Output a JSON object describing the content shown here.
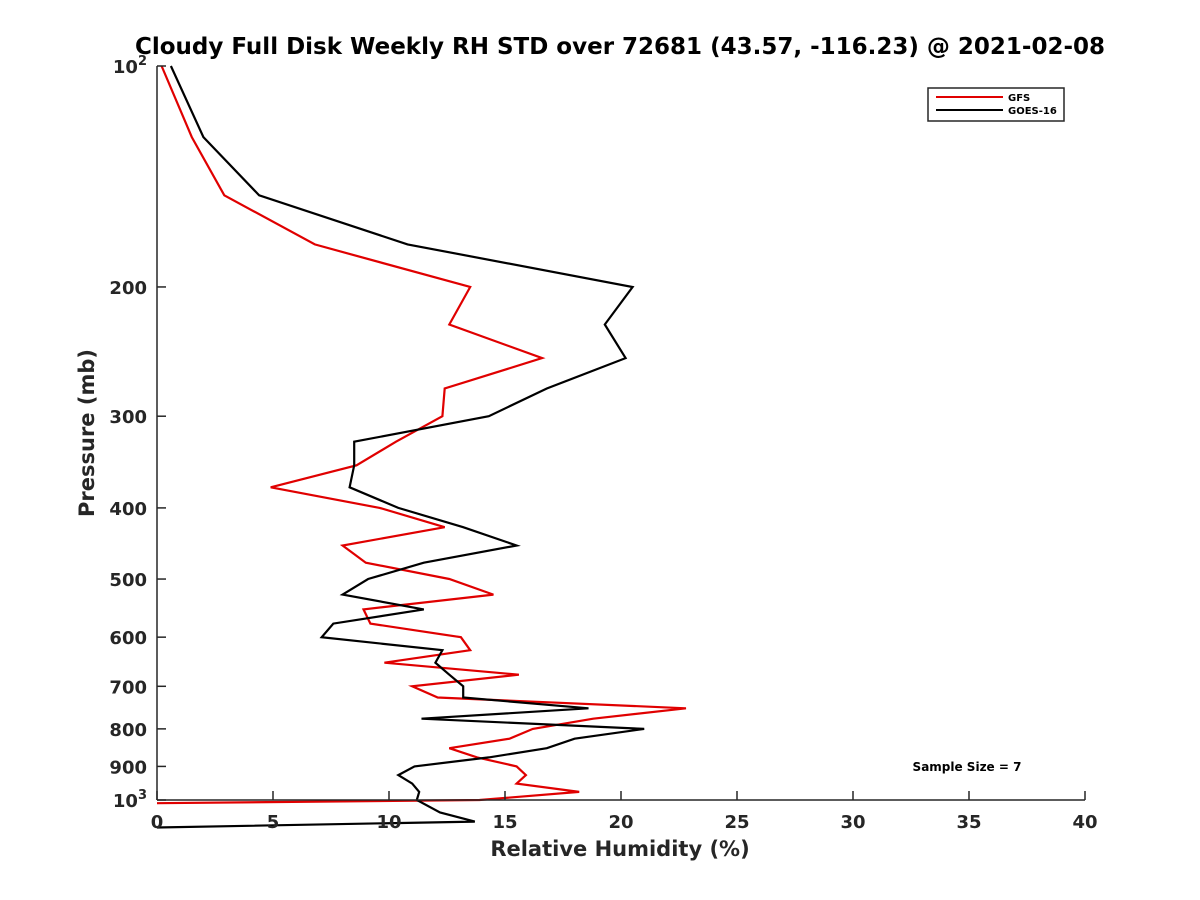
{
  "chart_data": {
    "type": "line",
    "title": "Cloudy Full Disk Weekly RH STD over 72681 (43.57, -116.23) @ 2021-02-08",
    "xlabel": "Relative Humidity (%)",
    "ylabel": "Pressure (mb)",
    "xlim": [
      0,
      40
    ],
    "ylim": [
      100,
      1000
    ],
    "y_scale": "log",
    "y_reversed": true,
    "grid": false,
    "legend_position": "top-right",
    "note": "Sample Size = 7",
    "x_ticks": [
      "0",
      "5",
      "10",
      "15",
      "20",
      "25",
      "30",
      "35",
      "40"
    ],
    "x_tick_values": [
      0,
      5,
      10,
      15,
      20,
      25,
      30,
      35,
      40
    ],
    "y_ticks": [
      {
        "value": 100,
        "base": "10",
        "exp": "2"
      },
      {
        "value": 200,
        "label": "200"
      },
      {
        "value": 300,
        "label": "300"
      },
      {
        "value": 400,
        "label": "400"
      },
      {
        "value": 500,
        "label": "500"
      },
      {
        "value": 600,
        "label": "600"
      },
      {
        "value": 700,
        "label": "700"
      },
      {
        "value": 800,
        "label": "800"
      },
      {
        "value": 900,
        "label": "900"
      },
      {
        "value": 1000,
        "base": "10",
        "exp": "3"
      }
    ],
    "series": [
      {
        "name": "GFS",
        "color": "#e00000",
        "points": [
          [
            0.2,
            100
          ],
          [
            1.5,
            125
          ],
          [
            2.9,
            150
          ],
          [
            6.8,
            175
          ],
          [
            13.5,
            200
          ],
          [
            12.6,
            225
          ],
          [
            16.6,
            250
          ],
          [
            12.4,
            275
          ],
          [
            12.3,
            300
          ],
          [
            10.3,
            325
          ],
          [
            8.6,
            350
          ],
          [
            4.9,
            375
          ],
          [
            9.6,
            400
          ],
          [
            12.4,
            425
          ],
          [
            8.0,
            450
          ],
          [
            9.0,
            475
          ],
          [
            12.6,
            500
          ],
          [
            14.5,
            525
          ],
          [
            8.9,
            550
          ],
          [
            9.2,
            575
          ],
          [
            13.1,
            600
          ],
          [
            13.5,
            625
          ],
          [
            9.8,
            650
          ],
          [
            15.6,
            675
          ],
          [
            11.0,
            700
          ],
          [
            12.1,
            725
          ],
          [
            22.8,
            750
          ],
          [
            18.8,
            775
          ],
          [
            16.2,
            800
          ],
          [
            15.2,
            825
          ],
          [
            12.6,
            850
          ],
          [
            13.8,
            875
          ],
          [
            15.5,
            900
          ],
          [
            15.9,
            925
          ],
          [
            15.5,
            950
          ],
          [
            18.2,
            975
          ],
          [
            13.9,
            1000
          ],
          [
            0.0,
            1010
          ]
        ]
      },
      {
        "name": "GOES-16",
        "color": "#000000",
        "points": [
          [
            0.6,
            100
          ],
          [
            2.0,
            125
          ],
          [
            4.4,
            150
          ],
          [
            10.8,
            175
          ],
          [
            20.5,
            200
          ],
          [
            19.3,
            225
          ],
          [
            20.2,
            250
          ],
          [
            16.8,
            275
          ],
          [
            14.3,
            300
          ],
          [
            8.5,
            325
          ],
          [
            8.5,
            350
          ],
          [
            8.3,
            375
          ],
          [
            10.4,
            400
          ],
          [
            13.2,
            425
          ],
          [
            15.5,
            450
          ],
          [
            11.5,
            475
          ],
          [
            9.1,
            500
          ],
          [
            8.0,
            525
          ],
          [
            11.5,
            550
          ],
          [
            7.6,
            575
          ],
          [
            7.1,
            600
          ],
          [
            12.3,
            625
          ],
          [
            12.0,
            650
          ],
          [
            12.6,
            675
          ],
          [
            13.2,
            700
          ],
          [
            13.2,
            725
          ],
          [
            18.6,
            750
          ],
          [
            11.4,
            775
          ],
          [
            21.0,
            800
          ],
          [
            18.0,
            825
          ],
          [
            16.8,
            850
          ],
          [
            14.3,
            875
          ],
          [
            11.1,
            900
          ],
          [
            10.4,
            925
          ],
          [
            11.0,
            950
          ],
          [
            11.3,
            975
          ],
          [
            11.2,
            1000
          ],
          [
            12.2,
            1040
          ],
          [
            13.7,
            1070
          ],
          [
            0.0,
            1090
          ]
        ]
      }
    ]
  }
}
